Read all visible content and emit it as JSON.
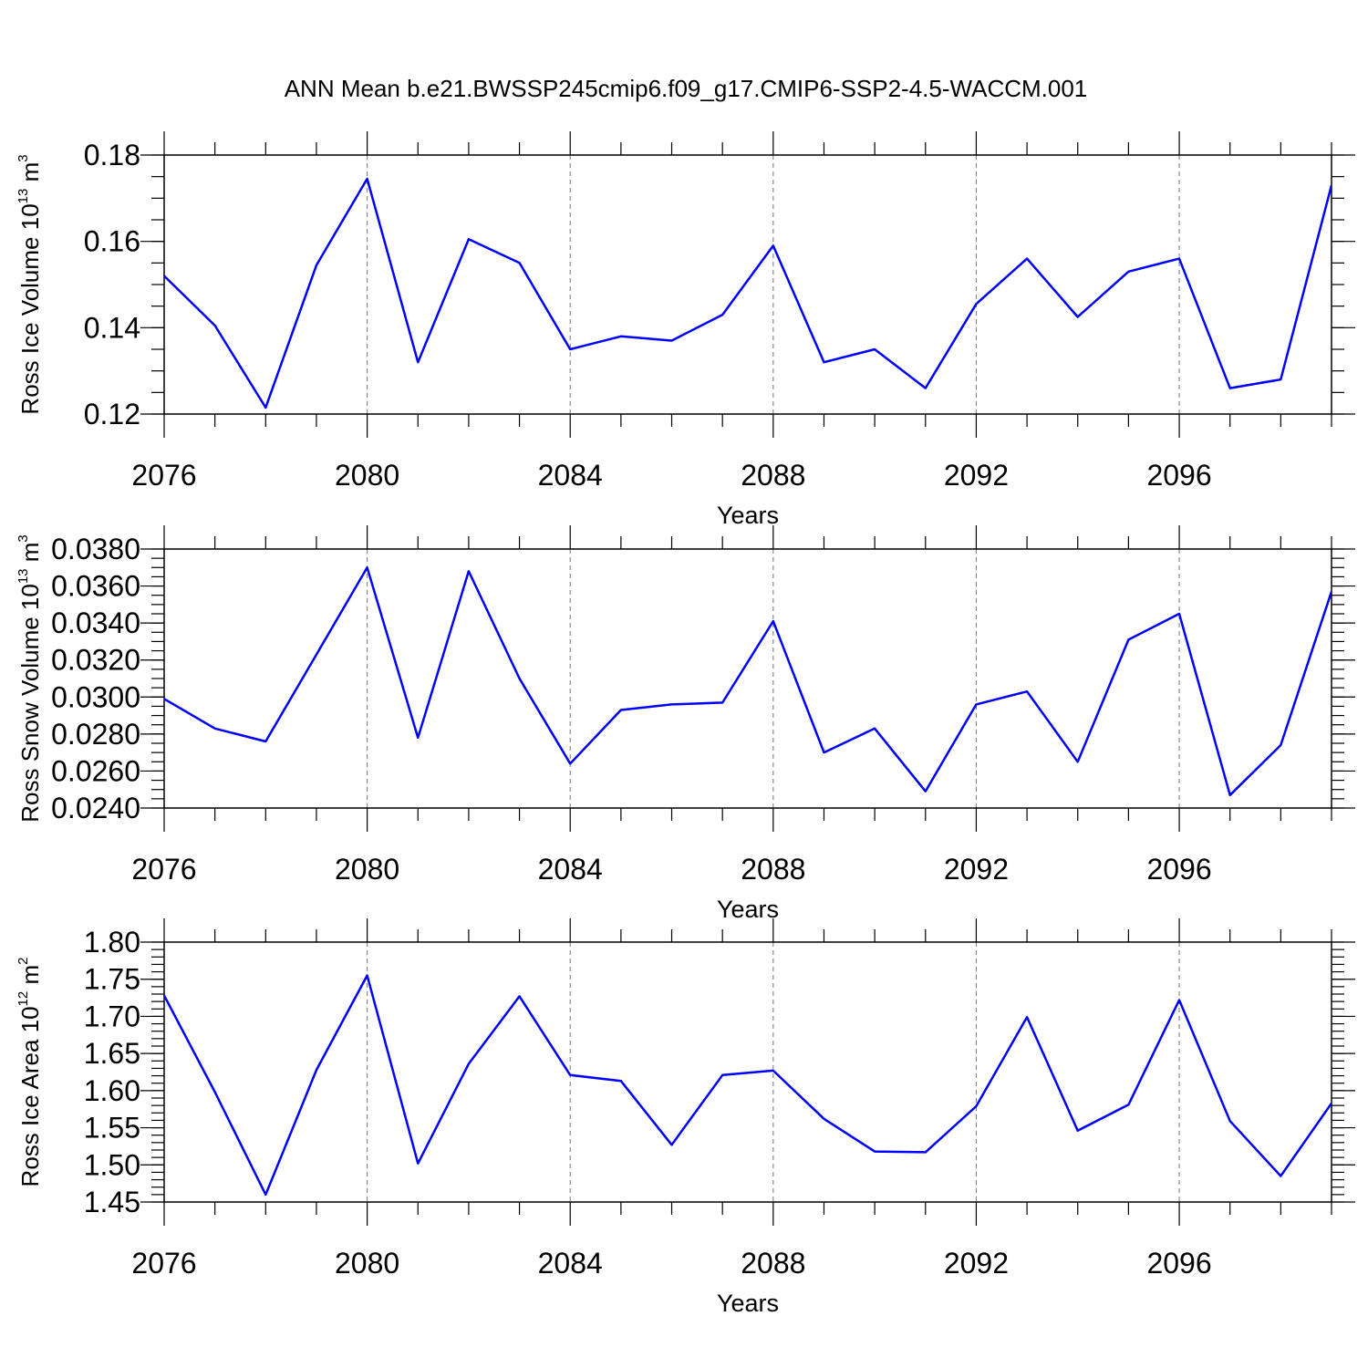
{
  "title": "ANN Mean b.e21.BWSSP245cmip6.f09_g17.CMIP6-SSP2-4.5-WACCM.001",
  "line_color": "#0000ff",
  "chart_data": [
    {
      "type": "line",
      "title": "ANN Mean b.e21.BWSSP245cmip6.f09_g17.CMIP6-SSP2-4.5-WACCM.001",
      "xlabel": "Years",
      "ylabel": "Ross Ice Volume 10",
      "ylabel_exp": "13",
      "ylabel_unit": " m",
      "ylabel_unit_exp": "3",
      "xlim": [
        2076,
        2099
      ],
      "ylim": [
        0.12,
        0.18
      ],
      "yticks": [
        "0.12",
        "0.14",
        "0.16",
        "0.18"
      ],
      "ytick_values": [
        0.12,
        0.14,
        0.16,
        0.18
      ],
      "ytick_minor": 0.005,
      "xticks": [
        "2076",
        "2080",
        "2084",
        "2088",
        "2092",
        "2096"
      ],
      "xtick_values": [
        2076,
        2080,
        2084,
        2088,
        2092,
        2096
      ],
      "grid_x": [
        2080,
        2084,
        2088,
        2092,
        2096
      ],
      "x": [
        2076,
        2077,
        2078,
        2079,
        2080,
        2081,
        2082,
        2083,
        2084,
        2085,
        2086,
        2087,
        2088,
        2089,
        2090,
        2091,
        2092,
        2093,
        2094,
        2095,
        2096,
        2097,
        2098,
        2099
      ],
      "series": [
        {
          "name": "Ross Ice Volume",
          "values": [
            0.152,
            0.1405,
            0.1215,
            0.1545,
            0.1745,
            0.132,
            0.1605,
            0.155,
            0.135,
            0.138,
            0.137,
            0.143,
            0.159,
            0.132,
            0.135,
            0.126,
            0.1455,
            0.156,
            0.1425,
            0.153,
            0.156,
            0.126,
            0.128,
            0.173
          ]
        }
      ]
    },
    {
      "type": "line",
      "xlabel": "Years",
      "ylabel": "Ross Snow Volume 10",
      "ylabel_exp": "13",
      "ylabel_unit": " m",
      "ylabel_unit_exp": "3",
      "xlim": [
        2076,
        2099
      ],
      "ylim": [
        0.024,
        0.038
      ],
      "yticks": [
        "0.0240",
        "0.0260",
        "0.0280",
        "0.0300",
        "0.0320",
        "0.0340",
        "0.0360",
        "0.0380"
      ],
      "ytick_values": [
        0.024,
        0.026,
        0.028,
        0.03,
        0.032,
        0.034,
        0.036,
        0.038
      ],
      "ytick_minor": 0.0005,
      "xticks": [
        "2076",
        "2080",
        "2084",
        "2088",
        "2092",
        "2096"
      ],
      "xtick_values": [
        2076,
        2080,
        2084,
        2088,
        2092,
        2096
      ],
      "grid_x": [
        2080,
        2084,
        2088,
        2092,
        2096
      ],
      "x": [
        2076,
        2077,
        2078,
        2079,
        2080,
        2081,
        2082,
        2083,
        2084,
        2085,
        2086,
        2087,
        2088,
        2089,
        2090,
        2091,
        2092,
        2093,
        2094,
        2095,
        2096,
        2097,
        2098,
        2099
      ],
      "series": [
        {
          "name": "Ross Snow Volume",
          "values": [
            0.0299,
            0.0283,
            0.0276,
            0.0323,
            0.037,
            0.0278,
            0.0368,
            0.031,
            0.0264,
            0.0293,
            0.0296,
            0.0297,
            0.0341,
            0.027,
            0.0283,
            0.0249,
            0.0296,
            0.0303,
            0.0265,
            0.0331,
            0.0345,
            0.0247,
            0.0274,
            0.0357
          ]
        }
      ]
    },
    {
      "type": "line",
      "xlabel": "Years",
      "ylabel": "Ross Ice Area 10",
      "ylabel_exp": "12",
      "ylabel_unit": " m",
      "ylabel_unit_exp": "2",
      "xlim": [
        2076,
        2099
      ],
      "ylim": [
        1.45,
        1.8
      ],
      "yticks": [
        "1.45",
        "1.50",
        "1.55",
        "1.60",
        "1.65",
        "1.70",
        "1.75",
        "1.80"
      ],
      "ytick_values": [
        1.45,
        1.5,
        1.55,
        1.6,
        1.65,
        1.7,
        1.75,
        1.8
      ],
      "ytick_minor": 0.01,
      "xticks": [
        "2076",
        "2080",
        "2084",
        "2088",
        "2092",
        "2096"
      ],
      "xtick_values": [
        2076,
        2080,
        2084,
        2088,
        2092,
        2096
      ],
      "grid_x": [
        2080,
        2084,
        2088,
        2092,
        2096
      ],
      "x": [
        2076,
        2077,
        2078,
        2079,
        2080,
        2081,
        2082,
        2083,
        2084,
        2085,
        2086,
        2087,
        2088,
        2089,
        2090,
        2091,
        2092,
        2093,
        2094,
        2095,
        2096,
        2097,
        2098,
        2099
      ],
      "series": [
        {
          "name": "Ross Ice Area",
          "values": [
            1.728,
            1.598,
            1.46,
            1.628,
            1.755,
            1.502,
            1.636,
            1.727,
            1.621,
            1.613,
            1.527,
            1.621,
            1.627,
            1.562,
            1.518,
            1.517,
            1.579,
            1.699,
            1.546,
            1.581,
            1.722,
            1.559,
            1.485,
            1.583
          ]
        }
      ]
    }
  ]
}
